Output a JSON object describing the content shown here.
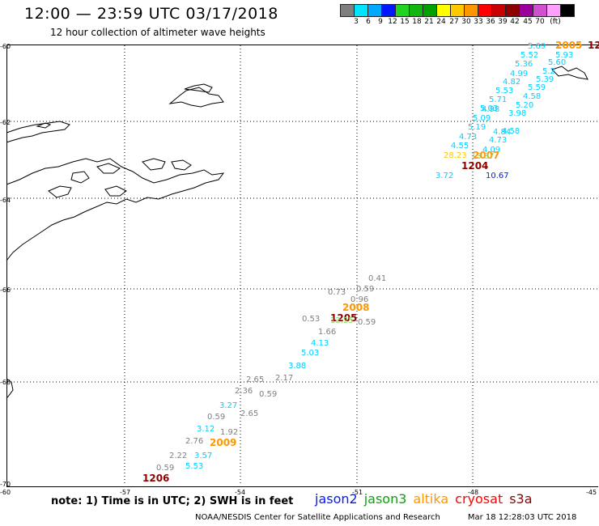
{
  "header": {
    "title": "12:00 — 23:59 UTC 03/17/2018",
    "subtitle": "12 hour collection of altimeter wave heights"
  },
  "scale": {
    "colors": [
      "#7f7f7f",
      "#00e5ff",
      "#00a8ff",
      "#0018ff",
      "#21d421",
      "#10b510",
      "#00a000",
      "#ffff00",
      "#ffc800",
      "#ff9600",
      "#ff0000",
      "#c80000",
      "#8c0000",
      "#9b009b",
      "#d050d0",
      "#ffa0ff",
      "#000000"
    ],
    "labels": [
      "3",
      "6",
      "9",
      "12",
      "15",
      "18",
      "21",
      "24",
      "27",
      "30",
      "33",
      "36",
      "39",
      "42",
      "45",
      "70",
      "(ft)"
    ]
  },
  "axes": {
    "lat_labels": [
      "-60",
      "-62",
      "-64",
      "-66",
      "-68",
      "-70"
    ],
    "lon_labels": [
      "-60",
      "-57",
      "-54",
      "-51",
      "-48",
      "-45"
    ]
  },
  "tracks": {
    "values": [
      {
        "v": "5.69",
        "c": "#00d0ff"
      },
      {
        "v": "2005",
        "c": "#ff9600"
      },
      {
        "v": "12",
        "c": "#8c0000"
      },
      {
        "v": "5.52",
        "c": "#00d0ff"
      },
      {
        "v": "5.93",
        "c": "#00d0ff"
      },
      {
        "v": "5.36",
        "c": "#00d0ff"
      },
      {
        "v": "5.60",
        "c": "#00d0ff"
      },
      {
        "v": "4.99",
        "c": "#00d0ff"
      },
      {
        "v": "5.2",
        "c": "#00d0ff"
      },
      {
        "v": "4.82",
        "c": "#00d0ff"
      },
      {
        "v": "5.39",
        "c": "#00d0ff"
      },
      {
        "v": "5.53",
        "c": "#00d0ff"
      },
      {
        "v": "5.59",
        "c": "#00d0ff"
      },
      {
        "v": "5.71",
        "c": "#00d0ff"
      },
      {
        "v": "4.58",
        "c": "#00d0ff"
      },
      {
        "v": "4.98",
        "c": "#00d0ff"
      },
      {
        "v": "5.20",
        "c": "#00d0ff"
      },
      {
        "v": "5.03",
        "c": "#00d0ff"
      },
      {
        "v": "3.98",
        "c": "#00d0ff"
      },
      {
        "v": "5.09",
        "c": "#00d0ff"
      },
      {
        "v": "4.58",
        "c": "#00d0ff"
      },
      {
        "v": "5.19",
        "c": "#00d0ff"
      },
      {
        "v": "4.84",
        "c": "#00d0ff"
      },
      {
        "v": "4.73",
        "c": "#00d0ff"
      },
      {
        "v": "4.73",
        "c": "#00d0ff"
      },
      {
        "v": "4.55",
        "c": "#00d0ff"
      },
      {
        "v": "4.09",
        "c": "#00d0ff"
      },
      {
        "v": "2007",
        "c": "#ff9600"
      },
      {
        "v": "28.23",
        "c": "#ffc800"
      },
      {
        "v": "13.87",
        "c": "#80e060"
      },
      {
        "v": "1204",
        "c": "#8c0000"
      },
      {
        "v": "3.72",
        "c": "#00d0ff"
      },
      {
        "v": "10.67",
        "c": "#0018ff"
      },
      {
        "v": "0.41",
        "c": "#7f7f7f"
      },
      {
        "v": "0.59",
        "c": "#7f7f7f"
      },
      {
        "v": "0.73",
        "c": "#7f7f7f"
      },
      {
        "v": "0.96",
        "c": "#7f7f7f"
      },
      {
        "v": "2008",
        "c": "#ff9600"
      },
      {
        "v": "0.53",
        "c": "#7f7f7f"
      },
      {
        "v": "1205",
        "c": "#8c0000"
      },
      {
        "v": "12.25",
        "c": "#80e060"
      },
      {
        "v": "0.59",
        "c": "#7f7f7f"
      },
      {
        "v": "1.66",
        "c": "#7f7f7f"
      },
      {
        "v": "4.13",
        "c": "#00d0ff"
      },
      {
        "v": "5.03",
        "c": "#00d0ff"
      },
      {
        "v": "3.88",
        "c": "#00d0ff"
      },
      {
        "v": "2.65",
        "c": "#7f7f7f"
      },
      {
        "v": "2.17",
        "c": "#7f7f7f"
      },
      {
        "v": "2.36",
        "c": "#7f7f7f"
      },
      {
        "v": "0.59",
        "c": "#7f7f7f"
      },
      {
        "v": "3.27",
        "c": "#00d0ff"
      },
      {
        "v": "2.65",
        "c": "#7f7f7f"
      },
      {
        "v": "0.59",
        "c": "#7f7f7f"
      },
      {
        "v": "3.12",
        "c": "#00d0ff"
      },
      {
        "v": "1.92",
        "c": "#7f7f7f"
      },
      {
        "v": "2.76",
        "c": "#7f7f7f"
      },
      {
        "v": "2009",
        "c": "#ff9600"
      },
      {
        "v": "2.22",
        "c": "#7f7f7f"
      },
      {
        "v": "3.57",
        "c": "#00d0ff"
      },
      {
        "v": "5.53",
        "c": "#00d0ff"
      },
      {
        "v": "0.59",
        "c": "#7f7f7f"
      },
      {
        "v": "1206",
        "c": "#8c0000"
      }
    ]
  },
  "footer": {
    "note": "note: 1) Time is in UTC; 2) SWH is in feet",
    "satellites": [
      {
        "name": "jason2",
        "color": "#0018ff"
      },
      {
        "name": "jason3",
        "color": "#10a010"
      },
      {
        "name": "altika",
        "color": "#ff9600"
      },
      {
        "name": "cryosat",
        "color": "#ff0000"
      },
      {
        "name": "s3a",
        "color": "#8c0000"
      }
    ],
    "credit": "NOAA/NESDIS Center for Satellite Applications and Research",
    "timestamp": "Mar 18 12:28:03 UTC 2018"
  }
}
